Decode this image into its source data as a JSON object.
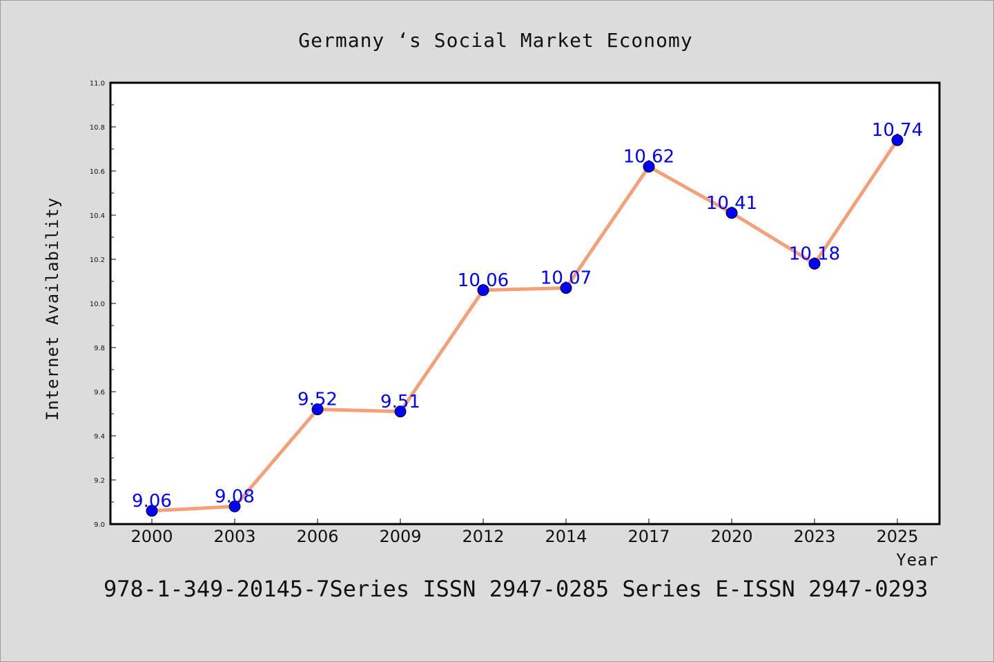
{
  "chart_data": {
    "type": "line",
    "title": "Germany ‘s Social Market Economy",
    "xlabel": "Year",
    "ylabel": "Internet Availability",
    "categories": [
      "2000",
      "2003",
      "2006",
      "2009",
      "2012",
      "2014",
      "2017",
      "2020",
      "2023",
      "2025"
    ],
    "series": [
      {
        "values": [
          9.06,
          9.08,
          9.52,
          9.51,
          10.06,
          10.07,
          10.62,
          10.41,
          10.18,
          10.74
        ]
      }
    ],
    "data_labels": [
      "9.06",
      "9.08",
      "9.52",
      "9.51",
      "10.06",
      "10.07",
      "10.62",
      "10.41",
      "10.18",
      "10.74"
    ],
    "ylim": [
      9.0,
      11.0
    ],
    "yticks": [
      "9.0",
      "9.2",
      "9.4",
      "9.6",
      "9.8",
      "10.0",
      "10.2",
      "10.4",
      "10.6",
      "10.8",
      "11.0"
    ],
    "grid": false,
    "legend": "none",
    "colors": {
      "line": "#f4a07a",
      "marker": "#0000ff",
      "data_label": "#0000ff",
      "background": "#dcdcdc",
      "plot_background": "#ffffff"
    }
  },
  "footer": {
    "text": "978-1-349-20145-7Series ISSN 2947-0285 Series E-ISSN 2947-0293"
  }
}
